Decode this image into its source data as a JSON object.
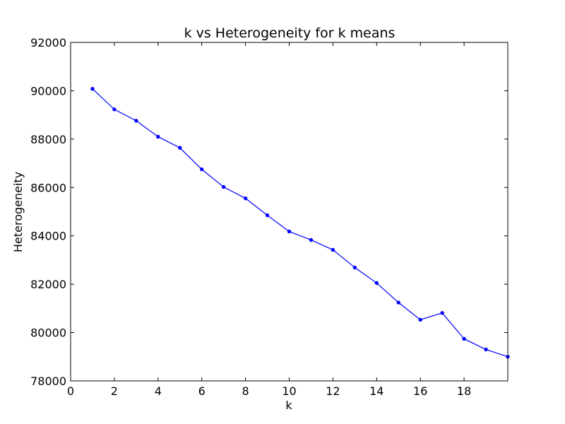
{
  "chart_data": {
    "type": "line",
    "title": "k vs Heterogeneity for k means",
    "xlabel": "k",
    "ylabel": "Heterogeneity",
    "xlim": [
      0,
      20
    ],
    "ylim": [
      78000,
      92000
    ],
    "x_ticks": [
      0,
      2,
      4,
      6,
      8,
      10,
      12,
      14,
      16,
      18
    ],
    "x_tick_labels": [
      "0",
      "2",
      "4",
      "6",
      "8",
      "10",
      "12",
      "14",
      "16",
      "18"
    ],
    "y_ticks": [
      78000,
      80000,
      82000,
      84000,
      86000,
      88000,
      90000,
      92000
    ],
    "y_tick_labels": [
      "78000",
      "80000",
      "82000",
      "84000",
      "86000",
      "88000",
      "90000",
      "92000"
    ],
    "grid": false,
    "legend": "none",
    "series": [
      {
        "color": "#0000ff",
        "marker": "point",
        "x": [
          1,
          2,
          3,
          4,
          5,
          6,
          7,
          8,
          9,
          10,
          11,
          12,
          13,
          14,
          15,
          16,
          17,
          18,
          19,
          20
        ],
        "y": [
          90080,
          89230,
          88760,
          88100,
          87640,
          86750,
          86020,
          85550,
          84850,
          84180,
          83830,
          83420,
          82690,
          82050,
          81240,
          80530,
          80810,
          79740,
          79300,
          79000
        ]
      }
    ]
  }
}
